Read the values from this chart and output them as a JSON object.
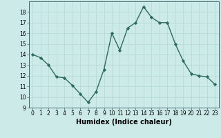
{
  "x": [
    0,
    1,
    2,
    3,
    4,
    5,
    6,
    7,
    8,
    9,
    10,
    11,
    12,
    13,
    14,
    15,
    16,
    17,
    18,
    19,
    20,
    21,
    22,
    23
  ],
  "y": [
    14,
    13.7,
    13,
    11.9,
    11.8,
    11.1,
    10.3,
    9.5,
    10.5,
    12.6,
    16.0,
    14.4,
    16.5,
    17.0,
    18.5,
    17.5,
    17.0,
    17.0,
    15.0,
    13.4,
    12.2,
    12.0,
    11.9,
    11.2
  ],
  "xlabel": "Humidex (Indice chaleur)",
  "ylim": [
    9,
    19
  ],
  "xlim_min": -0.5,
  "xlim_max": 23.5,
  "yticks": [
    9,
    10,
    11,
    12,
    13,
    14,
    15,
    16,
    17,
    18
  ],
  "xticks": [
    0,
    1,
    2,
    3,
    4,
    5,
    6,
    7,
    8,
    9,
    10,
    11,
    12,
    13,
    14,
    15,
    16,
    17,
    18,
    19,
    20,
    21,
    22,
    23
  ],
  "line_color": "#2e6b5e",
  "bg_color": "#cceae8",
  "grid_color": "#b8dbd8",
  "marker": "D",
  "markersize": 2.2,
  "linewidth": 1.0,
  "tick_fontsize": 5.5,
  "xlabel_fontsize": 7.0
}
